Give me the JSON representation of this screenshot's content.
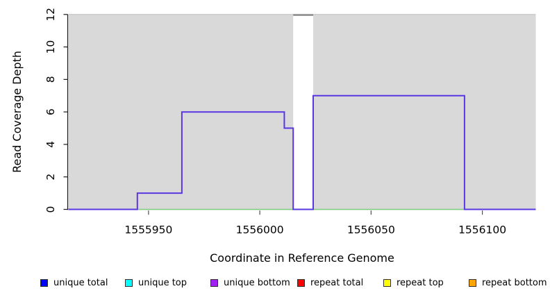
{
  "chart_data": {
    "type": "area",
    "title": "",
    "xlabel": "Coordinate in Reference Genome",
    "ylabel": "Read Coverage Depth",
    "xlim": [
      1555914,
      1556124
    ],
    "ylim": [
      0,
      12
    ],
    "x_ticks": [
      1555950,
      1556000,
      1556050,
      1556100
    ],
    "y_ticks": [
      0,
      2,
      4,
      6,
      8,
      10,
      12
    ],
    "grid": false,
    "legend_position": "bottom",
    "panel": {
      "fill": "#d9d9d9",
      "top_edge_color": "#c6c6c6"
    },
    "masked_region": {
      "x_start": 1556015,
      "x_end": 1556024,
      "fill": "#ffffff",
      "top_line_color": "#8e8e8e",
      "top_value": 12
    },
    "series": [
      {
        "name": "zero-baseline",
        "type": "line",
        "color": "#7ccd7c",
        "points": [
          [
            1555914,
            0
          ],
          [
            1556124,
            0
          ]
        ]
      },
      {
        "name": "unique-coverage-step",
        "type": "step",
        "color": "#5a35e2",
        "points": [
          [
            1555914,
            0
          ],
          [
            1555945,
            0
          ],
          [
            1555945,
            1
          ],
          [
            1555965,
            1
          ],
          [
            1555965,
            6
          ],
          [
            1556011,
            6
          ],
          [
            1556011,
            5
          ],
          [
            1556015,
            5
          ],
          [
            1556015,
            0
          ],
          [
            1556024,
            0
          ],
          [
            1556024,
            7
          ],
          [
            1556092,
            7
          ],
          [
            1556092,
            0
          ],
          [
            1556124,
            0
          ]
        ]
      }
    ],
    "legend": [
      {
        "label": "unique total",
        "color": "#0000ff"
      },
      {
        "label": "unique top",
        "color": "#00ffff"
      },
      {
        "label": "unique bottom",
        "color": "#a020f0"
      },
      {
        "label": "repeat total",
        "color": "#ff0000"
      },
      {
        "label": "repeat top",
        "color": "#ffff00"
      },
      {
        "label": "repeat bottom",
        "color": "#ffa500"
      }
    ]
  }
}
